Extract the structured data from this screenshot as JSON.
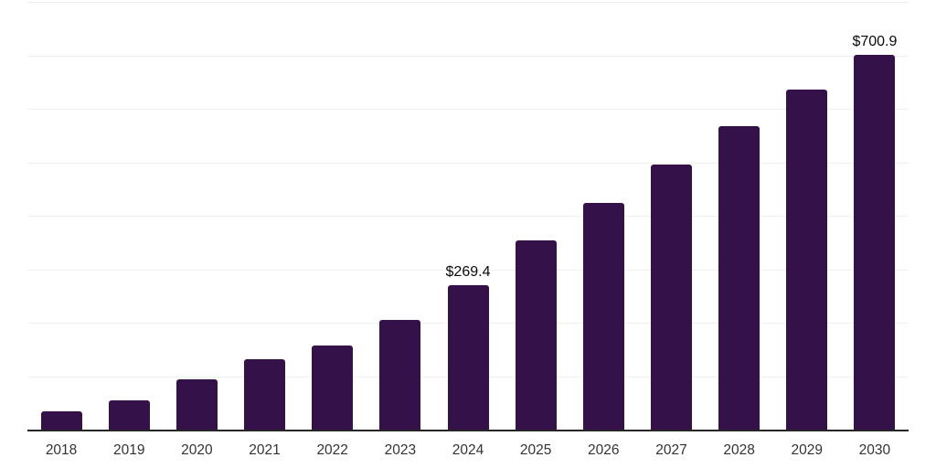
{
  "chart_data": {
    "type": "bar",
    "title": "",
    "xlabel": "",
    "ylabel": "",
    "categories": [
      "2018",
      "2019",
      "2020",
      "2021",
      "2022",
      "2023",
      "2024",
      "2025",
      "2026",
      "2027",
      "2028",
      "2029",
      "2030"
    ],
    "values": [
      35.0,
      55.5,
      94.5,
      132.3,
      158.0,
      205.6,
      269.4,
      354.0,
      424.0,
      495.5,
      567.0,
      635.3,
      700.9
    ],
    "labeled_points": [
      {
        "category": "2024",
        "label": "$269.4"
      },
      {
        "category": "2030",
        "label": "$700.9"
      }
    ],
    "ylim": [
      0,
      800
    ],
    "gridline_step": 100,
    "grid": true,
    "legend": false,
    "colors": {
      "bar": "#341149",
      "axis_line": "#262626",
      "gridline": "#f0f0f0",
      "tick_label": "#333333",
      "value_label": "#0a0a0a"
    }
  }
}
